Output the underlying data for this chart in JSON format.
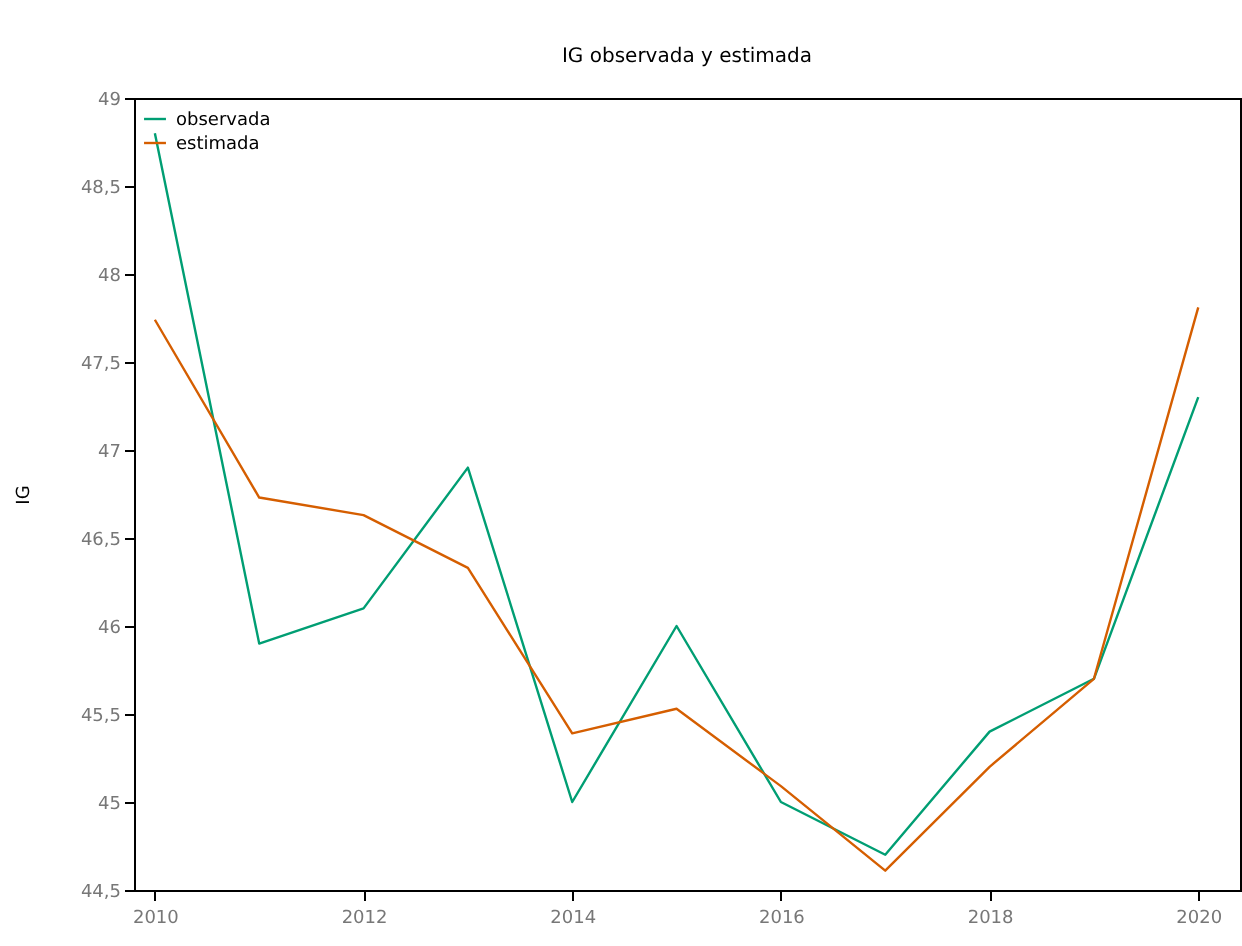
{
  "chart_data": {
    "type": "line",
    "title": "IG observada y estimada",
    "ylabel": "IG",
    "x": [
      2010,
      2011,
      2012,
      2013,
      2014,
      2015,
      2016,
      2017,
      2018,
      2019,
      2020
    ],
    "series": [
      {
        "name": "observada",
        "color": "#009e73",
        "values": [
          48.8,
          45.9,
          46.1,
          46.9,
          45.0,
          46.0,
          45.0,
          44.7,
          45.4,
          45.7,
          47.3
        ]
      },
      {
        "name": "estimada",
        "color": "#d55e00",
        "values": [
          47.74,
          46.73,
          46.63,
          46.33,
          45.39,
          45.53,
          45.09,
          44.61,
          45.2,
          45.7,
          47.81
        ]
      }
    ],
    "xlim": [
      2009.8,
      2020.4
    ],
    "xticks": [
      2010,
      2012,
      2014,
      2016,
      2018,
      2020
    ],
    "ylim": [
      44.5,
      49
    ],
    "yticks": [
      {
        "value": 44.5,
        "label": "44,5"
      },
      45,
      {
        "value": 45.5,
        "label": "45,5"
      },
      46,
      {
        "value": 46.5,
        "label": "46,5"
      },
      47,
      {
        "value": 47.5,
        "label": "47,5"
      },
      48,
      {
        "value": 48.5,
        "label": "48,5"
      },
      49
    ],
    "legend": "top left",
    "grid": false,
    "marker": "none",
    "line_style": "solid"
  }
}
